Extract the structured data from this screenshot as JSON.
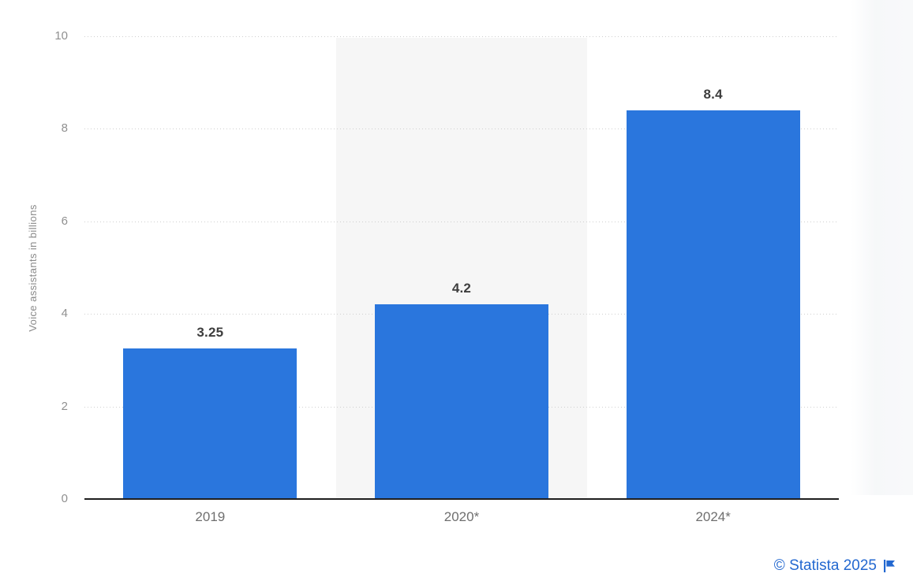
{
  "chart_data": {
    "type": "bar",
    "categories": [
      "2019",
      "2020*",
      "2024*"
    ],
    "values": [
      3.25,
      4.2,
      8.4
    ],
    "value_labels": [
      "3.25",
      "4.2",
      "8.4"
    ],
    "title": "",
    "xlabel": "",
    "ylabel": "Voice assistants in billions",
    "ylim": [
      0,
      10
    ],
    "yticks": [
      0,
      2,
      4,
      6,
      8,
      10
    ],
    "grid": "horizontal-dotted",
    "legend": "none",
    "highlighted_category": "2020*",
    "highlighted_category_index": 1,
    "colors": {
      "bar": "#2a76dd",
      "highlight_band": "#f6f6f6",
      "gridline": "#cfcfcf",
      "axis_line": "#1f1f1f",
      "tick_label": "#909090",
      "category_label": "#6f6f6f",
      "value_label": "#3d3d3d"
    }
  },
  "footer": {
    "credit_text": "© Statista 2025",
    "credit_color": "#2368d0"
  }
}
